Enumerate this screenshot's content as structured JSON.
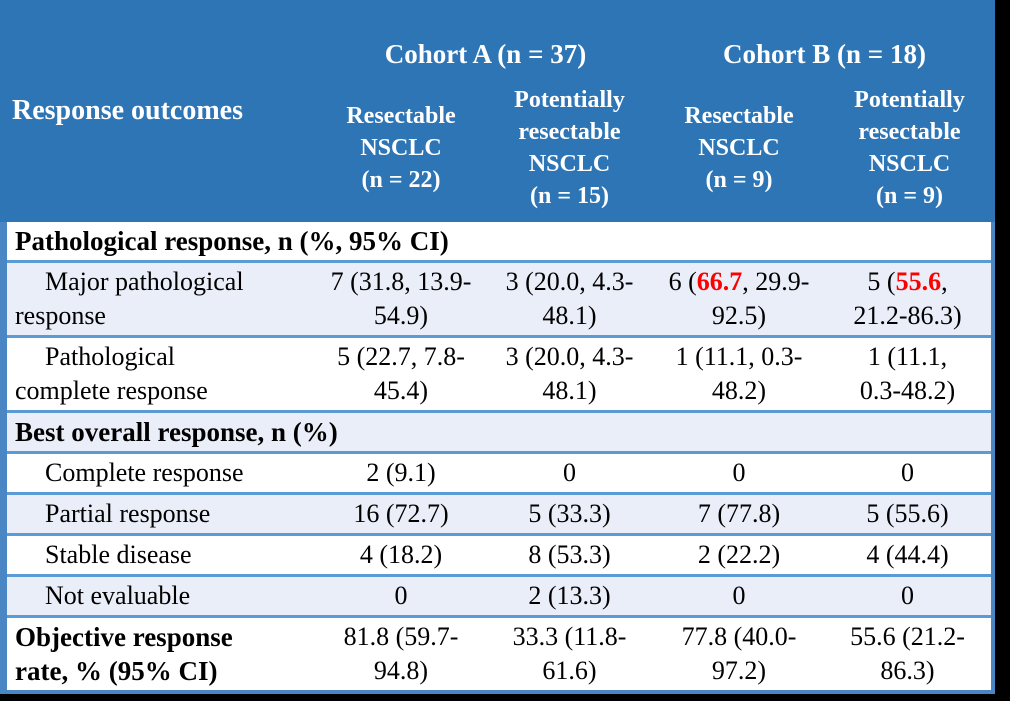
{
  "colors": {
    "header_bg": "#2E75B6",
    "border_strong": "#4A86C4",
    "row_line": "#5B9BD5",
    "shade_bg": "#EAEEF8",
    "highlight_red": "#FF0000",
    "header_text": "#FFFFFF"
  },
  "table": {
    "header": {
      "row_label": "Response outcomes",
      "cohort_a": "Cohort A (n = 37)",
      "cohort_b": "Cohort B (n = 18)",
      "columns": [
        "Resectable\nNSCLC\n(n = 22)",
        "Potentially\nresectable\nNSCLC\n(n = 15)",
        "Resectable\nNSCLC\n(n = 9)",
        "Potentially\nresectable\nNSCLC\n(n = 9)"
      ]
    },
    "rows": [
      {
        "type": "section",
        "shade": false,
        "indent": false,
        "label": "Pathological response, n (%, 95% CI)"
      },
      {
        "type": "data",
        "shade": true,
        "indent": true,
        "label": "Major pathological\nresponse",
        "cells": [
          {
            "parts": [
              {
                "text": "7 (31.8, 13.9-\n54.9)"
              }
            ]
          },
          {
            "parts": [
              {
                "text": "3 (20.0, 4.3-\n48.1)"
              }
            ]
          },
          {
            "parts": [
              {
                "text": "6 ("
              },
              {
                "text": "66.7",
                "red": true
              },
              {
                "text": ", 29.9-\n92.5)"
              }
            ]
          },
          {
            "parts": [
              {
                "text": "5 ("
              },
              {
                "text": "55.6",
                "red": true
              },
              {
                "text": ",\n21.2-86.3)"
              }
            ]
          }
        ]
      },
      {
        "type": "data",
        "shade": false,
        "indent": true,
        "label": "Pathological\ncomplete response",
        "cells": [
          {
            "parts": [
              {
                "text": "5 (22.7, 7.8-\n45.4)"
              }
            ]
          },
          {
            "parts": [
              {
                "text": "3 (20.0, 4.3-\n48.1)"
              }
            ]
          },
          {
            "parts": [
              {
                "text": "1 (11.1, 0.3-\n48.2)"
              }
            ]
          },
          {
            "parts": [
              {
                "text": "1 (11.1,\n0.3-48.2)"
              }
            ]
          }
        ]
      },
      {
        "type": "section",
        "shade": true,
        "indent": false,
        "label": "Best overall response, n (%)"
      },
      {
        "type": "data",
        "shade": false,
        "indent": true,
        "label": "Complete response",
        "cells": [
          {
            "parts": [
              {
                "text": "2 (9.1)"
              }
            ]
          },
          {
            "parts": [
              {
                "text": "0"
              }
            ]
          },
          {
            "parts": [
              {
                "text": "0"
              }
            ]
          },
          {
            "parts": [
              {
                "text": "0"
              }
            ]
          }
        ]
      },
      {
        "type": "data",
        "shade": true,
        "indent": true,
        "label": "Partial response",
        "cells": [
          {
            "parts": [
              {
                "text": "16 (72.7)"
              }
            ]
          },
          {
            "parts": [
              {
                "text": "5 (33.3)"
              }
            ]
          },
          {
            "parts": [
              {
                "text": "7 (77.8)"
              }
            ]
          },
          {
            "parts": [
              {
                "text": "5 (55.6)"
              }
            ]
          }
        ]
      },
      {
        "type": "data",
        "shade": false,
        "indent": true,
        "label": "Stable disease",
        "cells": [
          {
            "parts": [
              {
                "text": "4 (18.2)"
              }
            ]
          },
          {
            "parts": [
              {
                "text": "8 (53.3)"
              }
            ]
          },
          {
            "parts": [
              {
                "text": "2 (22.2)"
              }
            ]
          },
          {
            "parts": [
              {
                "text": "4 (44.4)"
              }
            ]
          }
        ]
      },
      {
        "type": "data",
        "shade": true,
        "indent": true,
        "label": "Not evaluable",
        "cells": [
          {
            "parts": [
              {
                "text": "0"
              }
            ]
          },
          {
            "parts": [
              {
                "text": "2 (13.3)"
              }
            ]
          },
          {
            "parts": [
              {
                "text": "0"
              }
            ]
          },
          {
            "parts": [
              {
                "text": "0"
              }
            ]
          }
        ]
      },
      {
        "type": "data",
        "shade": false,
        "indent": false,
        "bold_label": true,
        "label": "Objective response\nrate, % (95% CI)",
        "cells": [
          {
            "parts": [
              {
                "text": "81.8 (59.7-\n94.8)"
              }
            ]
          },
          {
            "parts": [
              {
                "text": "33.3 (11.8-\n61.6)"
              }
            ]
          },
          {
            "parts": [
              {
                "text": "77.8 (40.0-\n97.2)"
              }
            ]
          },
          {
            "parts": [
              {
                "text": "55.6 (21.2-\n86.3)"
              }
            ]
          }
        ]
      }
    ]
  }
}
